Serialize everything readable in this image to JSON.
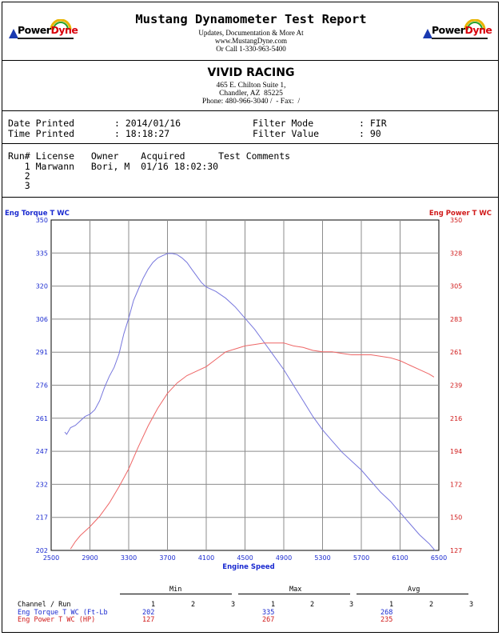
{
  "header": {
    "title": "Mustang Dynamometer Test Report",
    "lines": [
      "Updates, Documentation & More At",
      "www.MustangDyne.com",
      "Or Call 1-330-963-5400"
    ],
    "logo_text_1": "Power",
    "logo_text_2": "Dyne"
  },
  "shop": {
    "name": "VIVID RACING",
    "lines": [
      "465 E. Chilton Suite 1,",
      "Chandler, AZ  85225",
      "Phone: 480-966-3040 /  - Fax:  /"
    ]
  },
  "meta": {
    "date_label": "Date Printed",
    "date_value": ": 2014/01/16",
    "time_label": "Time Printed",
    "time_value": ": 18:18:27",
    "mode_label": "Filter Mode",
    "mode_value": ": FIR",
    "fval_label": "Filter Value",
    "fval_value": ": 90"
  },
  "runs": {
    "header": "Run# License   Owner    Acquired      Test Comments",
    "rows": [
      "   1 Marwann   Bori, M  01/16 18:02:30",
      "   2",
      "   3"
    ]
  },
  "colors": {
    "torque": "#7777dd",
    "power": "#ee6666",
    "torque_label": "#1a2ad0",
    "power_label": "#d01a1a",
    "grid": "#8c8c8c"
  },
  "chart_data": {
    "type": "line",
    "xlabel": "Engine Speed",
    "x_ticks": [
      2500,
      2900,
      3300,
      3700,
      4100,
      4500,
      4900,
      5300,
      5700,
      6100,
      6500
    ],
    "xlim": [
      2500,
      6500
    ],
    "left_axis": {
      "label": "Eng Torque T WC",
      "ylim": [
        202,
        350
      ],
      "ticks": [
        350,
        335,
        320,
        306,
        291,
        276,
        261,
        247,
        232,
        217,
        202
      ]
    },
    "right_axis": {
      "label": "Eng Power T WC",
      "ylim": [
        127,
        350
      ],
      "ticks": [
        350,
        328,
        305,
        283,
        261,
        239,
        216,
        194,
        172,
        150,
        127
      ]
    },
    "series": [
      {
        "name": "Eng Torque T WC",
        "axis": "left",
        "x": [
          2640,
          2660,
          2700,
          2750,
          2800,
          2850,
          2900,
          2950,
          3000,
          3050,
          3100,
          3150,
          3200,
          3250,
          3300,
          3350,
          3400,
          3450,
          3500,
          3550,
          3600,
          3650,
          3700,
          3750,
          3800,
          3850,
          3900,
          3950,
          4000,
          4050,
          4100,
          4200,
          4300,
          4400,
          4500,
          4600,
          4700,
          4800,
          4900,
          5000,
          5100,
          5200,
          5300,
          5400,
          5500,
          5600,
          5700,
          5800,
          5900,
          6000,
          6100,
          6200,
          6300,
          6400,
          6460
        ],
        "y": [
          255,
          254,
          257,
          258,
          260,
          262,
          263,
          265,
          269,
          275,
          280,
          284,
          290,
          299,
          306,
          314,
          319,
          324,
          328,
          331,
          333,
          334,
          335,
          335,
          334.5,
          333,
          331,
          328,
          325,
          322,
          320,
          318,
          315,
          311,
          306,
          301,
          295,
          289,
          283,
          276,
          269,
          262,
          256,
          251,
          246,
          242,
          238,
          233,
          228,
          224,
          219,
          214,
          209,
          205,
          202
        ]
      },
      {
        "name": "Eng Power T WC",
        "axis": "right",
        "x": [
          2700,
          2750,
          2800,
          2900,
          3000,
          3100,
          3200,
          3300,
          3400,
          3500,
          3600,
          3700,
          3800,
          3900,
          4000,
          4100,
          4200,
          4300,
          4400,
          4500,
          4600,
          4700,
          4800,
          4900,
          5000,
          5100,
          5200,
          5300,
          5400,
          5500,
          5600,
          5700,
          5800,
          5900,
          6000,
          6100,
          6200,
          6300,
          6400,
          6450
        ],
        "y": [
          128,
          133,
          137,
          143,
          150,
          159,
          170,
          182,
          197,
          211,
          223,
          233,
          240,
          245,
          248,
          251,
          256,
          261,
          263,
          265,
          266,
          267,
          267,
          267,
          265,
          264,
          262,
          261,
          261,
          260,
          259,
          259,
          259,
          258,
          257,
          255,
          252,
          249,
          246,
          244
        ]
      }
    ]
  },
  "summary": {
    "min_label": "Min",
    "max_label": "Max",
    "avg_label": "Avg",
    "channel_header": "Channel / Run",
    "run_numbers": [
      "1",
      "2",
      "3"
    ],
    "rows": [
      {
        "name": "Eng Torque T WC (Ft-Lb",
        "min": "202",
        "max": "335",
        "avg": "268"
      },
      {
        "name": "Eng Power T WC (HP)",
        "min": "127",
        "max": "267",
        "avg": "235"
      }
    ]
  }
}
